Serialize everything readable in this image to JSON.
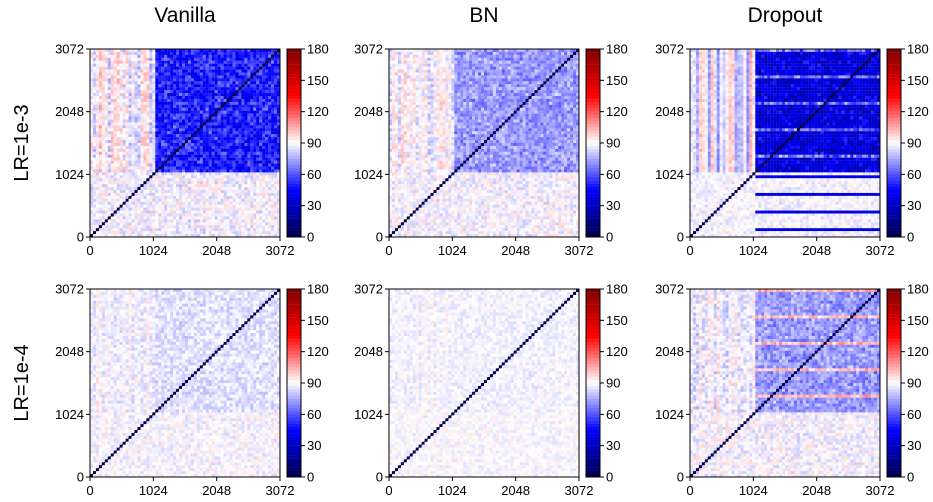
{
  "chart_data": [
    {
      "type": "heatmap",
      "column": "Vanilla",
      "row": "LR=1e-3",
      "pattern": "strong_upper_block",
      "x_ticks": [
        "0",
        "1024",
        "2048",
        "3072"
      ],
      "y_ticks": [
        "0",
        "1024",
        "2048",
        "3072"
      ],
      "xlim": [
        0,
        3072
      ],
      "ylim": [
        0,
        3072
      ],
      "colorbar": {
        "ticks": [
          "0",
          "30",
          "60",
          "90",
          "120",
          "150",
          "180"
        ],
        "range": [
          0,
          180
        ],
        "cmap": "seismic"
      }
    },
    {
      "type": "heatmap",
      "column": "BN",
      "row": "LR=1e-3",
      "pattern": "medium_upper_block",
      "x_ticks": [
        "0",
        "1024",
        "2048",
        "3072"
      ],
      "y_ticks": [
        "0",
        "1024",
        "2048",
        "3072"
      ],
      "xlim": [
        0,
        3072
      ],
      "ylim": [
        0,
        3072
      ],
      "colorbar": {
        "ticks": [
          "0",
          "30",
          "60",
          "90",
          "120",
          "150",
          "180"
        ],
        "range": [
          0,
          180
        ],
        "cmap": "seismic"
      }
    },
    {
      "type": "heatmap",
      "column": "Dropout",
      "row": "LR=1e-3",
      "pattern": "very_strong_upper_block",
      "x_ticks": [
        "0",
        "1024",
        "2048",
        "3072"
      ],
      "y_ticks": [
        "0",
        "1024",
        "2048",
        "3072"
      ],
      "xlim": [
        0,
        3072
      ],
      "ylim": [
        0,
        3072
      ],
      "colorbar": {
        "ticks": [
          "0",
          "30",
          "60",
          "90",
          "120",
          "150",
          "180"
        ],
        "range": [
          0,
          180
        ],
        "cmap": "seismic"
      }
    },
    {
      "type": "heatmap",
      "column": "Vanilla",
      "row": "LR=1e-4",
      "pattern": "faint",
      "x_ticks": [
        "0",
        "1024",
        "2048",
        "3072"
      ],
      "y_ticks": [
        "0",
        "1024",
        "2048",
        "3072"
      ],
      "xlim": [
        0,
        3072
      ],
      "ylim": [
        0,
        3072
      ],
      "colorbar": {
        "ticks": [
          "0",
          "30",
          "60",
          "90",
          "120",
          "150",
          "180"
        ],
        "range": [
          0,
          180
        ],
        "cmap": "seismic"
      }
    },
    {
      "type": "heatmap",
      "column": "BN",
      "row": "LR=1e-4",
      "pattern": "very_faint",
      "x_ticks": [
        "0",
        "1024",
        "2048",
        "3072"
      ],
      "y_ticks": [
        "0",
        "1024",
        "2048",
        "3072"
      ],
      "xlim": [
        0,
        3072
      ],
      "ylim": [
        0,
        3072
      ],
      "colorbar": {
        "ticks": [
          "0",
          "30",
          "60",
          "90",
          "120",
          "150",
          "180"
        ],
        "range": [
          0,
          180
        ],
        "cmap": "seismic"
      }
    },
    {
      "type": "heatmap",
      "column": "Dropout",
      "row": "LR=1e-4",
      "pattern": "medium_upper_block",
      "x_ticks": [
        "0",
        "1024",
        "2048",
        "3072"
      ],
      "y_ticks": [
        "0",
        "1024",
        "2048",
        "3072"
      ],
      "xlim": [
        0,
        3072
      ],
      "ylim": [
        0,
        3072
      ],
      "colorbar": {
        "ticks": [
          "0",
          "30",
          "60",
          "90",
          "120",
          "150",
          "180"
        ],
        "range": [
          0,
          180
        ],
        "cmap": "seismic"
      }
    }
  ],
  "columns": [
    "Vanilla",
    "BN",
    "Dropout"
  ],
  "rows": [
    "LR=1e-3",
    "LR=1e-4"
  ],
  "colors": {
    "low": "#00004c",
    "mid": "#ffffff",
    "high": "#800000",
    "blue": "#0000ff",
    "red": "#ff0000"
  }
}
